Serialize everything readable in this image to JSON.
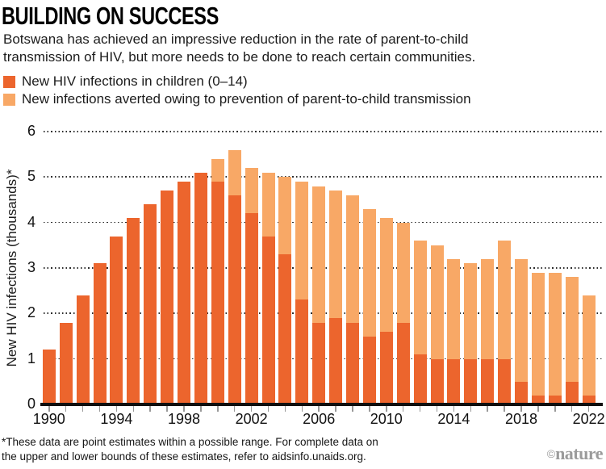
{
  "header": {
    "title": "BUILDING ON SUCCESS",
    "subtitle_lines": [
      "Botswana has achieved an impressive reduction in the rate of parent-to-child",
      "transmission of HIV, but more needs to be done to reach certain communities."
    ]
  },
  "legend": [
    {
      "label": "New HIV infections in children (0–14)",
      "color": "#EC652D"
    },
    {
      "label": "New infections averted owing to prevention of parent-to-child transmission",
      "color": "#F8A866"
    }
  ],
  "chart_data": {
    "type": "bar",
    "stacked": true,
    "title": "BUILDING ON SUCCESS",
    "ylabel": "New HIV infections (thousands)*",
    "xlabel": "",
    "ylim": [
      0,
      6
    ],
    "yticks": [
      0,
      1,
      2,
      3,
      4,
      5,
      6
    ],
    "grid": "horizontal-dotted",
    "legend_position": "top-left",
    "categories": [
      1990,
      1991,
      1992,
      1993,
      1994,
      1995,
      1996,
      1997,
      1998,
      1999,
      2000,
      2001,
      2002,
      2003,
      2004,
      2005,
      2006,
      2007,
      2008,
      2009,
      2010,
      2011,
      2012,
      2013,
      2014,
      2015,
      2016,
      2017,
      2018,
      2019,
      2020,
      2021,
      2022
    ],
    "xtick_labels": [
      1990,
      1994,
      1998,
      2002,
      2006,
      2010,
      2014,
      2018,
      2022
    ],
    "series": [
      {
        "name": "New HIV infections in children (0–14)",
        "color": "#EC652D",
        "values": [
          1.2,
          1.8,
          2.4,
          3.1,
          3.7,
          4.1,
          4.4,
          4.7,
          4.9,
          5.1,
          4.9,
          4.6,
          4.2,
          3.7,
          3.3,
          2.3,
          1.8,
          1.9,
          1.8,
          1.5,
          1.6,
          1.8,
          1.1,
          1.0,
          1.0,
          1.0,
          1.0,
          1.0,
          0.5,
          0.2,
          0.2,
          0.5,
          0.2
        ],
        "stack_totals_note": "bottom segment"
      },
      {
        "name": "New infections averted owing to prevention of parent-to-child transmission",
        "color": "#F8A866",
        "values": [
          0,
          0,
          0,
          0,
          0,
          0,
          0,
          0,
          0,
          0,
          0.5,
          1.0,
          1.0,
          1.4,
          1.7,
          2.6,
          3.0,
          2.8,
          2.8,
          2.8,
          2.5,
          2.2,
          2.5,
          2.5,
          2.2,
          2.1,
          2.2,
          2.6,
          2.7,
          2.7,
          2.7,
          2.3,
          2.2
        ],
        "stack_totals_note": "top segment"
      }
    ]
  },
  "footnote": {
    "lines": [
      "*These data are point estimates within a possible range. For complete data on",
      "the upper and lower bounds of these estimates, refer to aidsinfo.unaids.org."
    ]
  },
  "watermark": {
    "copyright": "©",
    "brand": "nature"
  },
  "colors": {
    "series_dark": "#EC652D",
    "series_light": "#F8A866",
    "gridline": "#2d2d2d",
    "baseline": "#101010",
    "tick": "#999999",
    "text": "#1a1a1a",
    "watermark": "#9b9b9b"
  }
}
